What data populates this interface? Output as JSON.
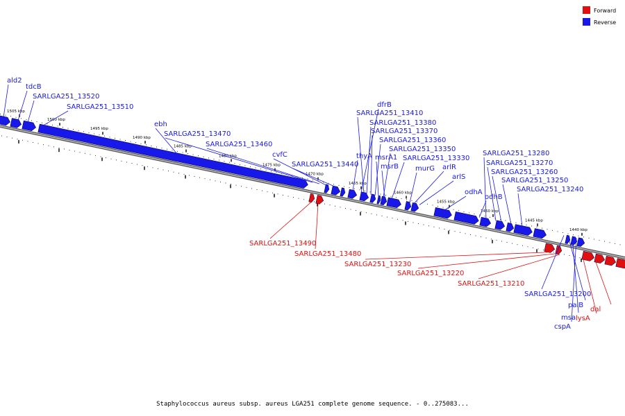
{
  "colors": {
    "forward": "#e01010",
    "reverse": "#1818e8",
    "backbone": "#999999"
  },
  "legend": [
    {
      "label": "Forward",
      "color": "#e01010"
    },
    {
      "label": "Reverse",
      "color": "#1818e8"
    }
  ],
  "kbp_ticks": [
    "1505 kbp",
    "1500 kbp",
    "1495 kbp",
    "1490 kbp",
    "1485 kbp",
    "1480 kbp",
    "1475 kbp",
    "1470 kbp",
    "1465 kbp",
    "1460 kbp",
    "1455 kbp",
    "1450 kbp",
    "1445 kbp",
    "1440 kbp"
  ],
  "reverse_labels": [
    "ald2",
    "tdcB",
    "SARLGA251_13520",
    "SARLGA251_13510",
    "ebh",
    "SARLGA251_13470",
    "SARLGA251_13460",
    "cvfC",
    "SARLGA251_13440",
    "dfrB",
    "SARLGA251_13410",
    "SARLGA251_13380",
    "SARLGA251_13370",
    "SARLGA251_13360",
    "thyA",
    "SARLGA251_13350",
    "msrA1",
    "SARLGA251_13330",
    "msrB",
    "murG",
    "arlR",
    "arlS",
    "odhA",
    "odhB",
    "SARLGA251_13280",
    "SARLGA251_13270",
    "SARLGA251_13260",
    "SARLGA251_13250",
    "SARLGA251_13240",
    "SARLGA251_13200",
    "paiB",
    "msa",
    "cspA"
  ],
  "forward_labels": [
    "SARLGA251_13490",
    "SARLGA251_13480",
    "SARLGA251_13230",
    "SARLGA251_13220",
    "SARLGA251_13210",
    "lysA",
    "dal"
  ],
  "caption": "Staphylococcus aureus subsp. aureus LGA251 complete genome sequence. - 0..275083..."
}
